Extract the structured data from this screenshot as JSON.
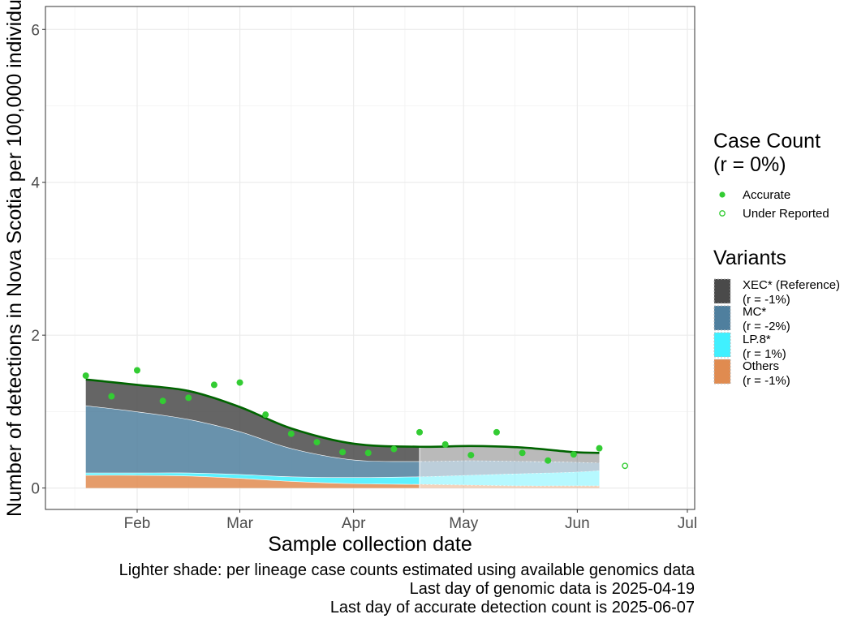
{
  "chart_data": {
    "type": "area",
    "xlabel": "Sample collection date",
    "ylabel": "Number of detections in Nova Scotia per 100,000 individu",
    "xlim": [
      "2025-01-07",
      "2025-07-03"
    ],
    "ylim": [
      -0.28,
      6.3
    ],
    "x_ticks": [
      {
        "date": "2025-02-01",
        "label": "Feb"
      },
      {
        "date": "2025-03-01",
        "label": "Mar"
      },
      {
        "date": "2025-04-01",
        "label": "Apr"
      },
      {
        "date": "2025-05-01",
        "label": "May"
      },
      {
        "date": "2025-06-01",
        "label": "Jun"
      },
      {
        "date": "2025-07-01",
        "label": "Jul"
      }
    ],
    "y_ticks": [
      0,
      2,
      4,
      6
    ],
    "x_minor_ticks": [
      "2025-01-15",
      "2025-02-15",
      "2025-03-15",
      "2025-04-15",
      "2025-05-15",
      "2025-06-15"
    ],
    "y_minor_ticks": [
      1,
      3,
      5
    ],
    "genomic_cutoff_date": "2025-04-19",
    "dates": [
      "2025-01-18",
      "2025-02-01",
      "2025-02-15",
      "2025-03-01",
      "2025-03-15",
      "2025-04-01",
      "2025-04-19",
      "2025-05-03",
      "2025-05-17",
      "2025-05-31",
      "2025-06-07"
    ],
    "series": [
      {
        "name": "Others",
        "color": "#e08b50",
        "values": [
          0.17,
          0.17,
          0.16,
          0.13,
          0.09,
          0.06,
          0.05,
          0.04,
          0.03,
          0.03,
          0.03
        ]
      },
      {
        "name": "LP.8*",
        "color": "#40f0ff",
        "values": [
          0.03,
          0.03,
          0.04,
          0.05,
          0.06,
          0.08,
          0.1,
          0.13,
          0.16,
          0.18,
          0.2
        ]
      },
      {
        "name": "MC*",
        "color": "#4f7f9e",
        "values": [
          0.88,
          0.8,
          0.7,
          0.56,
          0.37,
          0.23,
          0.2,
          0.19,
          0.16,
          0.13,
          0.1
        ]
      },
      {
        "name": "XEC* (Reference)",
        "color": "#4a4a4a",
        "values": [
          0.34,
          0.35,
          0.37,
          0.32,
          0.26,
          0.21,
          0.19,
          0.19,
          0.18,
          0.13,
          0.13
        ]
      }
    ],
    "total_line": {
      "color": "#006400",
      "values": [
        1.42,
        1.35,
        1.27,
        1.06,
        0.78,
        0.58,
        0.54,
        0.55,
        0.53,
        0.47,
        0.46
      ]
    },
    "points": [
      {
        "date": "2025-01-18",
        "value": 1.47,
        "status": "Accurate"
      },
      {
        "date": "2025-01-25",
        "value": 1.2,
        "status": "Accurate"
      },
      {
        "date": "2025-02-01",
        "value": 1.54,
        "status": "Accurate"
      },
      {
        "date": "2025-02-08",
        "value": 1.14,
        "status": "Accurate"
      },
      {
        "date": "2025-02-15",
        "value": 1.18,
        "status": "Accurate"
      },
      {
        "date": "2025-02-22",
        "value": 1.35,
        "status": "Accurate"
      },
      {
        "date": "2025-03-01",
        "value": 1.38,
        "status": "Accurate"
      },
      {
        "date": "2025-03-08",
        "value": 0.96,
        "status": "Accurate"
      },
      {
        "date": "2025-03-15",
        "value": 0.71,
        "status": "Accurate"
      },
      {
        "date": "2025-03-22",
        "value": 0.6,
        "status": "Accurate"
      },
      {
        "date": "2025-03-29",
        "value": 0.47,
        "status": "Accurate"
      },
      {
        "date": "2025-04-05",
        "value": 0.46,
        "status": "Accurate"
      },
      {
        "date": "2025-04-12",
        "value": 0.51,
        "status": "Accurate"
      },
      {
        "date": "2025-04-19",
        "value": 0.73,
        "status": "Accurate"
      },
      {
        "date": "2025-04-26",
        "value": 0.57,
        "status": "Accurate"
      },
      {
        "date": "2025-05-03",
        "value": 0.43,
        "status": "Accurate"
      },
      {
        "date": "2025-05-10",
        "value": 0.73,
        "status": "Accurate"
      },
      {
        "date": "2025-05-17",
        "value": 0.46,
        "status": "Accurate"
      },
      {
        "date": "2025-05-24",
        "value": 0.36,
        "status": "Accurate"
      },
      {
        "date": "2025-05-31",
        "value": 0.44,
        "status": "Accurate"
      },
      {
        "date": "2025-06-07",
        "value": 0.52,
        "status": "Accurate"
      },
      {
        "date": "2025-06-14",
        "value": 0.29,
        "status": "Under Reported"
      }
    ],
    "grid": true,
    "legend_position": "right"
  },
  "legend": {
    "case_count": {
      "title_line1": "Case Count",
      "title_line2": "(r = 0%)",
      "items": [
        {
          "label": "Accurate",
          "color": "#33cc33",
          "filled": true
        },
        {
          "label": "Under Reported",
          "color": "#33cc33",
          "filled": false
        }
      ]
    },
    "variants": {
      "title": "Variants",
      "items": [
        {
          "name": "XEC* (Reference)",
          "r": "(r = -1%)",
          "color": "#4a4a4a"
        },
        {
          "name": "MC*",
          "r": "(r = -2%)",
          "color": "#4f7f9e"
        },
        {
          "name": "LP.8*",
          "r": "(r = 1%)",
          "color": "#40f0ff"
        },
        {
          "name": "Others",
          "r": "(r = -1%)",
          "color": "#e08b50"
        }
      ]
    }
  },
  "captions": [
    "Lighter shade: per lineage case counts estimated using available genomics data",
    "Last day of genomic data is 2025-04-19",
    "Last day of accurate detection count is 2025-06-07"
  ]
}
